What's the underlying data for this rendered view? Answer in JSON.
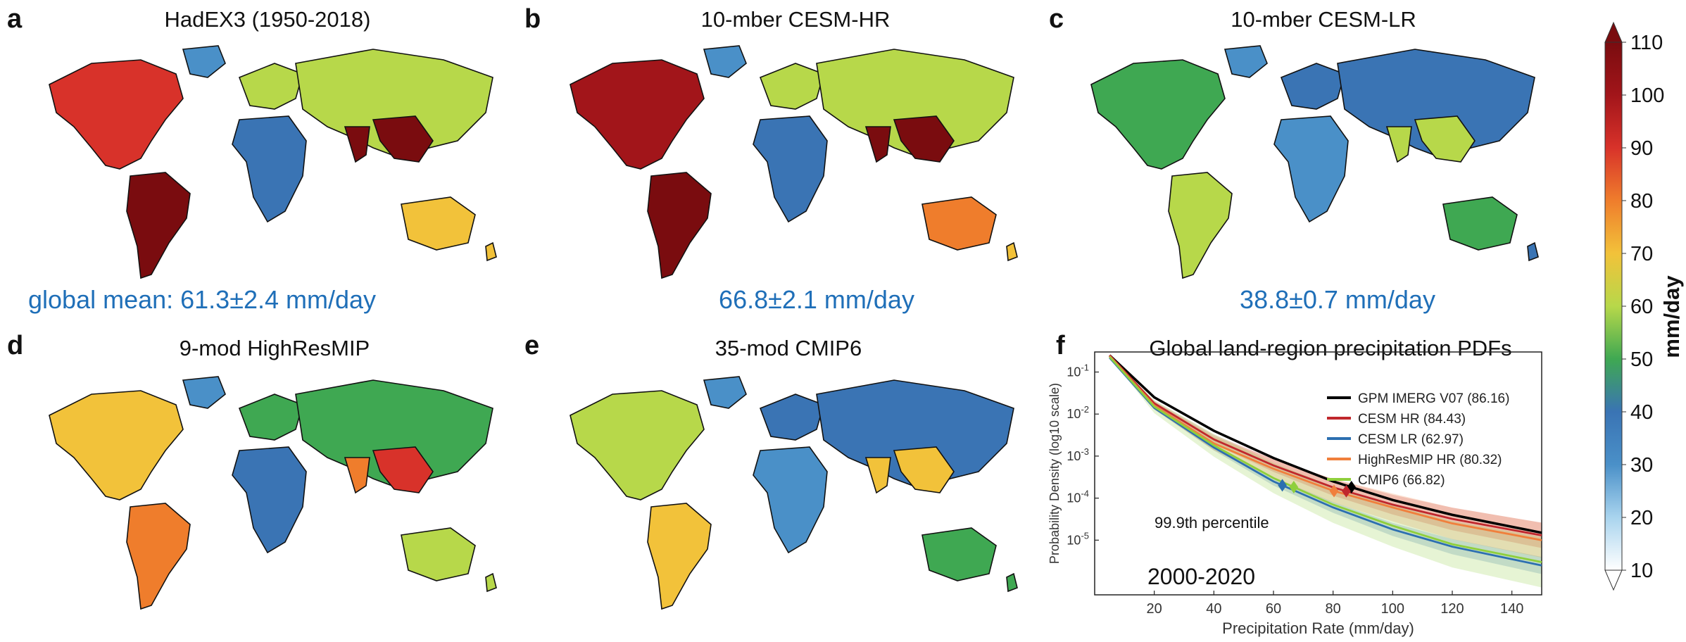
{
  "panels": [
    {
      "letter": "a",
      "title": "HadEX3 (1950-2018)",
      "stat": "global mean: 61.3±2.4 mm/day",
      "wet": 0.85
    },
    {
      "letter": "b",
      "title": "10-mber CESM-HR",
      "stat": "66.8±2.1 mm/day",
      "wet": 0.95
    },
    {
      "letter": "c",
      "title": "10-mber CESM-LR",
      "stat": "38.8±0.7 mm/day",
      "wet": 0.35
    },
    {
      "letter": "d",
      "title": "9-mod HighResMIP",
      "stat": "",
      "wet": 0.6
    },
    {
      "letter": "e",
      "title": "35-mod CMIP6",
      "stat": "",
      "wet": 0.45
    },
    {
      "letter": "f",
      "title": "Global land-region precipitation PDFs",
      "stat": ""
    }
  ],
  "colorbar": {
    "label": "mm/day",
    "min": 10,
    "max": 110,
    "ticks": [
      "10",
      "20",
      "30",
      "40",
      "50",
      "60",
      "70",
      "80",
      "90",
      "100",
      "110"
    ],
    "colors": [
      "#ffffff",
      "#a9d4ee",
      "#4a90c8",
      "#3a74b4",
      "#3fa852",
      "#b7d84a",
      "#f2c23a",
      "#ef7d2c",
      "#d8322a",
      "#a2151a",
      "#7a0c0f"
    ]
  },
  "chart_data": {
    "type": "line",
    "title": "Global land-region precipitation PDFs",
    "xlabel": "Precipitation Rate (mm/day)",
    "ylabel": "Probability Density (log10 scale)",
    "xlim": [
      0,
      150
    ],
    "ylim": [
      5e-07,
      0.3
    ],
    "yscale": "log",
    "xticks": [
      "20",
      "40",
      "60",
      "80",
      "100",
      "120",
      "140"
    ],
    "yticks": [
      "10-1",
      "10-2",
      "10-3",
      "10-4",
      "10-5"
    ],
    "period_label": "2000-2020",
    "percentile_label": "99.9th percentile",
    "series": [
      {
        "name": "GPM IMERG V07 (86.16)",
        "color": "#000000",
        "p99_9": 86.16,
        "x": [
          5,
          20,
          40,
          60,
          80,
          100,
          120,
          150
        ],
        "y": [
          0.25,
          0.025,
          0.004,
          0.0009,
          0.00025,
          9e-05,
          4e-05,
          1.5e-05
        ],
        "spread": 1.0
      },
      {
        "name": "CESM HR (84.43)",
        "color": "#c0282d",
        "p99_9": 84.43,
        "x": [
          5,
          20,
          40,
          60,
          80,
          100,
          120,
          150
        ],
        "y": [
          0.25,
          0.018,
          0.0025,
          0.0006,
          0.00018,
          7e-05,
          3.2e-05,
          1.3e-05
        ],
        "spread": 2.0
      },
      {
        "name": "CESM LR (62.97)",
        "color": "#2c6fb0",
        "p99_9": 62.97,
        "x": [
          5,
          20,
          40,
          60,
          80,
          100,
          120,
          150
        ],
        "y": [
          0.22,
          0.014,
          0.0016,
          0.00025,
          6e-05,
          1.8e-05,
          7e-06,
          2.5e-06
        ],
        "spread": 1.6
      },
      {
        "name": "HighResMIP HR (80.32)",
        "color": "#f07f3c",
        "p99_9": 80.32,
        "x": [
          5,
          20,
          40,
          60,
          80,
          100,
          120,
          150
        ],
        "y": [
          0.24,
          0.016,
          0.002,
          0.0005,
          0.00015,
          6e-05,
          2.5e-05,
          1e-05
        ],
        "spread": 2.6
      },
      {
        "name": "CMIP6 (66.82)",
        "color": "#8fcf3c",
        "p99_9": 66.82,
        "x": [
          5,
          20,
          40,
          60,
          80,
          100,
          120,
          150
        ],
        "y": [
          0.23,
          0.015,
          0.0018,
          0.0003,
          7e-05,
          2.2e-05,
          8e-06,
          3e-06
        ],
        "spread": 4.0
      }
    ]
  }
}
